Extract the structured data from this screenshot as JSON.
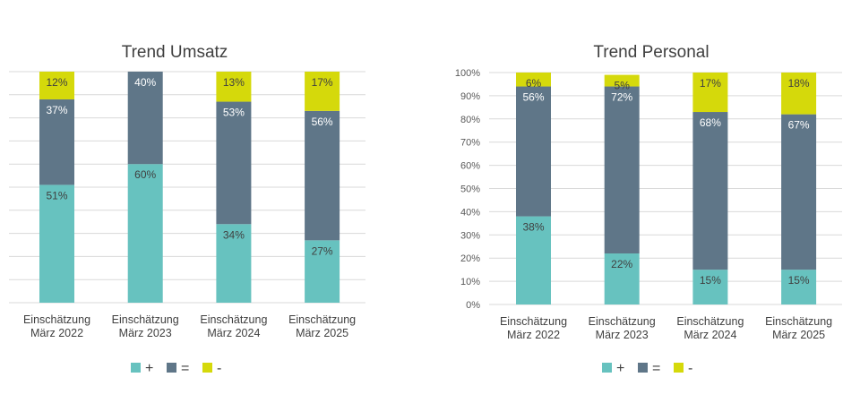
{
  "legend": [
    {
      "symbol": "+",
      "color": "#67c2bf"
    },
    {
      "symbol": "=",
      "color": "#5f7688"
    },
    {
      "symbol": "-",
      "color": "#d5d90b"
    }
  ],
  "chart_data": [
    {
      "type": "bar",
      "stacked": true,
      "title": "Trend Umsatz",
      "categories": [
        [
          "Einschätzung",
          "März 2022"
        ],
        [
          "Einschätzung",
          "März 2023"
        ],
        [
          "Einschätzung",
          "März 2024"
        ],
        [
          "Einschätzung",
          "März 2025"
        ]
      ],
      "series": [
        {
          "name": "+",
          "color": "#67c2bf",
          "values": [
            51,
            60,
            34,
            27
          ],
          "labels": [
            "51%",
            "60%",
            "34%",
            "27%"
          ]
        },
        {
          "name": "=",
          "color": "#5f7688",
          "values": [
            37,
            40,
            53,
            56
          ],
          "labels": [
            "37%",
            "40%",
            "53%",
            "56%"
          ]
        },
        {
          "name": "-",
          "color": "#d5d90b",
          "values": [
            12,
            0,
            13,
            17
          ],
          "labels": [
            "12%",
            "",
            "13%",
            "17%"
          ]
        }
      ],
      "ylim": [
        0,
        100
      ],
      "yticks": [],
      "grid": true,
      "legend_position": "bottom-center"
    },
    {
      "type": "bar",
      "stacked": true,
      "title": "Trend Personal",
      "categories": [
        [
          "Einschätzung",
          "März 2022"
        ],
        [
          "Einschätzung",
          "März 2023"
        ],
        [
          "Einschätzung",
          "März 2024"
        ],
        [
          "Einschätzung",
          "März 2025"
        ]
      ],
      "series": [
        {
          "name": "+",
          "color": "#67c2bf",
          "values": [
            38,
            22,
            15,
            15
          ],
          "labels": [
            "38%",
            "22%",
            "15%",
            "15%"
          ]
        },
        {
          "name": "=",
          "color": "#5f7688",
          "values": [
            56,
            72,
            68,
            67
          ],
          "labels": [
            "56%",
            "72%",
            "68%",
            "67%"
          ]
        },
        {
          "name": "-",
          "color": "#d5d90b",
          "values": [
            6,
            5,
            17,
            18
          ],
          "labels": [
            "6%",
            "5%",
            "17%",
            "18%"
          ]
        }
      ],
      "ylim": [
        0,
        100
      ],
      "yticks": [
        "0%",
        "10%",
        "20%",
        "30%",
        "40%",
        "50%",
        "60%",
        "70%",
        "80%",
        "90%",
        "100%"
      ],
      "grid": true,
      "legend_position": "bottom-center"
    }
  ]
}
